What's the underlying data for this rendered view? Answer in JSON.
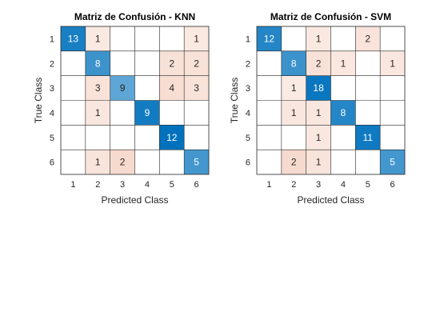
{
  "chart_data": [
    {
      "type": "heatmap",
      "title": "Matriz de Confusión - KNN",
      "xlabel": "Predicted Class",
      "ylabel": "True Class",
      "x_categories": [
        "1",
        "2",
        "3",
        "4",
        "5",
        "6"
      ],
      "y_categories": [
        "1",
        "2",
        "3",
        "4",
        "5",
        "6"
      ],
      "matrix": [
        [
          13,
          1,
          0,
          0,
          0,
          1
        ],
        [
          0,
          8,
          0,
          0,
          2,
          2
        ],
        [
          0,
          3,
          9,
          0,
          4,
          3
        ],
        [
          0,
          1,
          0,
          9,
          0,
          0
        ],
        [
          0,
          0,
          0,
          0,
          12,
          0
        ],
        [
          0,
          1,
          2,
          0,
          0,
          5
        ]
      ]
    },
    {
      "type": "heatmap",
      "title": "Matriz de Confusión - SVM",
      "xlabel": "Predicted Class",
      "ylabel": "True Class",
      "x_categories": [
        "1",
        "2",
        "3",
        "4",
        "5",
        "6"
      ],
      "y_categories": [
        "1",
        "2",
        "3",
        "4",
        "5",
        "6"
      ],
      "matrix": [
        [
          12,
          0,
          1,
          0,
          2,
          0
        ],
        [
          0,
          8,
          2,
          1,
          0,
          1
        ],
        [
          0,
          1,
          18,
          0,
          0,
          0
        ],
        [
          0,
          1,
          1,
          8,
          0,
          0
        ],
        [
          0,
          0,
          1,
          0,
          11,
          0
        ],
        [
          0,
          2,
          1,
          0,
          0,
          5
        ]
      ]
    }
  ],
  "colors": {
    "diagonal_dark": "#0072bd",
    "offdiagonal_dark": "#d95319",
    "background": "#ffffff",
    "grid": "#262626",
    "text_dark": "#262626",
    "text_light": "#ffffff"
  }
}
